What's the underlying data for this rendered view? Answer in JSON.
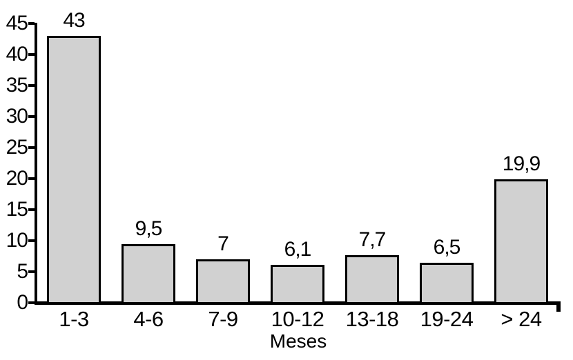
{
  "chart_data": {
    "type": "bar",
    "title": "",
    "xlabel": "Meses",
    "ylabel": "",
    "categories": [
      "1-3",
      "4-6",
      "7-9",
      "10-12",
      "13-18",
      "19-24",
      "> 24"
    ],
    "values": [
      43,
      9.5,
      7,
      6.1,
      7.7,
      6.5,
      19.9
    ],
    "value_labels": [
      "43",
      "9,5",
      "7",
      "6,1",
      "7,7",
      "6,5",
      "19,9"
    ],
    "ylim": [
      0,
      45
    ],
    "ytick_interval": 5,
    "yticks": [
      0,
      5,
      10,
      15,
      20,
      25,
      30,
      35,
      40,
      45
    ],
    "ytick_labels": [
      "0",
      "5",
      "10",
      "15",
      "20",
      "25",
      "30",
      "35",
      "40",
      "45"
    ],
    "grid": false,
    "legend_position": "none",
    "colors": {
      "background": "#ffffff",
      "bar_fill": "#d1d1d1",
      "bar_border": "#000000",
      "axis": "#000000",
      "text": "#000000"
    }
  }
}
